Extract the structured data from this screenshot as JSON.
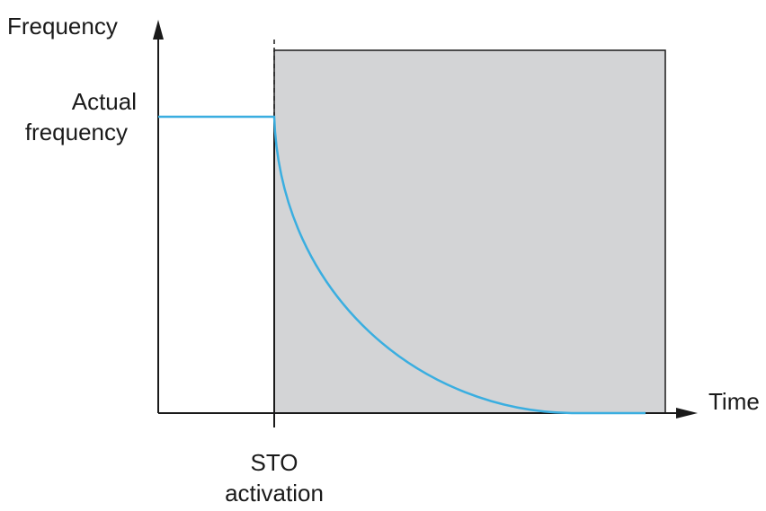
{
  "labels": {
    "y_axis": "Frequency",
    "x_axis": "Time",
    "level_line1": "Actual",
    "level_line2": "frequency",
    "event_line1": "STO",
    "event_line2": "activation"
  },
  "colors": {
    "curve": "#3aaee0",
    "shaded_region": "#d3d4d6",
    "axis": "#1a1a1a"
  }
}
